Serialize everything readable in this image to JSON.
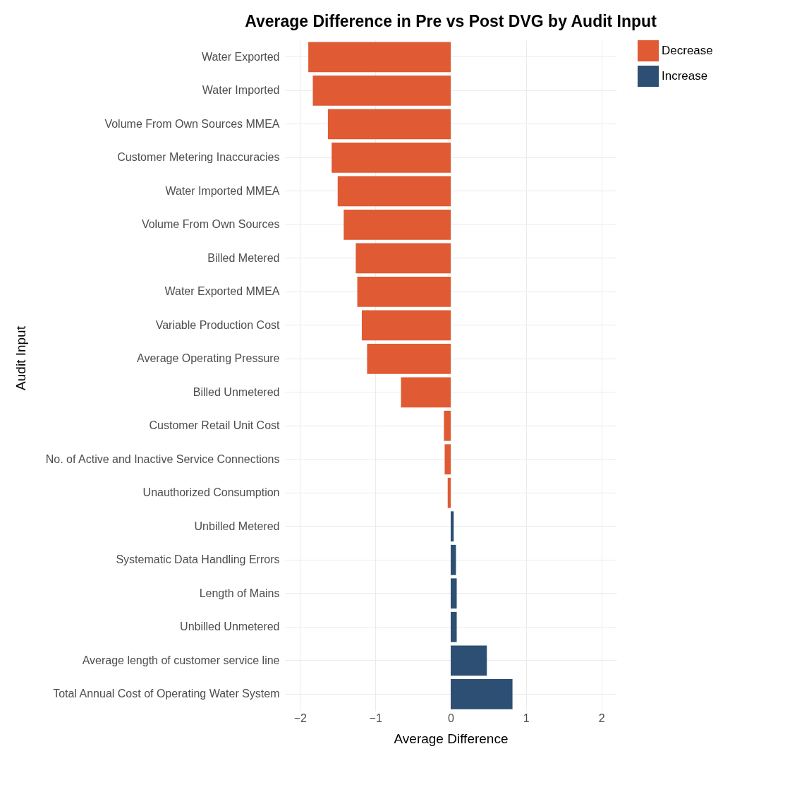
{
  "chart_data": {
    "type": "bar",
    "orientation": "horizontal",
    "title": "Average Difference in Pre vs Post DVG by Audit Input",
    "xlabel": "Average Difference",
    "ylabel": "Audit Input",
    "categories": [
      "Water Exported",
      "Water Imported",
      "Volume From Own Sources MMEA",
      "Customer Metering Inaccuracies",
      "Water Imported MMEA",
      "Volume From Own Sources",
      "Billed Metered",
      "Water Exported MMEA",
      "Variable Production Cost",
      "Average Operating Pressure",
      "Billed Unmetered",
      "Customer Retail Unit Cost",
      "No. of Active and Inactive Service Connections",
      "Unauthorized Consumption",
      "Unbilled Metered",
      "Systematic Data Handling Errors",
      "Length of Mains",
      "Unbilled Unmetered",
      "Average length of customer service line",
      "Total Annual Cost of Operating Water System"
    ],
    "series": [
      {
        "name": "Decrease",
        "color": "#e05a33",
        "values": [
          -1.89,
          -1.83,
          -1.63,
          -1.58,
          -1.5,
          -1.42,
          -1.26,
          -1.24,
          -1.18,
          -1.11,
          -0.66,
          -0.09,
          -0.08,
          -0.04,
          null,
          null,
          null,
          null,
          null,
          null
        ]
      },
      {
        "name": "Increase",
        "color": "#2c4f73",
        "values": [
          null,
          null,
          null,
          null,
          null,
          null,
          null,
          null,
          null,
          null,
          null,
          null,
          null,
          null,
          0.04,
          0.07,
          0.08,
          0.08,
          0.48,
          0.82
        ]
      }
    ],
    "xlim": [
      -2.2,
      2.2
    ],
    "xticks": [
      -2,
      -1,
      0,
      1,
      2
    ],
    "grid": true,
    "legend": "right"
  }
}
